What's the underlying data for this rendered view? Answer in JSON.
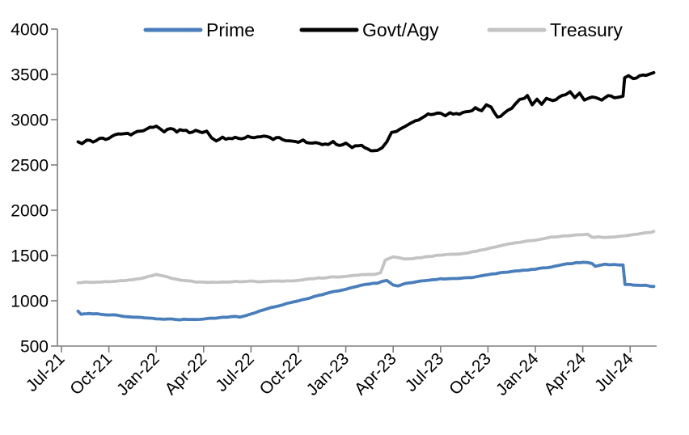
{
  "chart_data": {
    "type": "line",
    "title": "",
    "xlabel": "",
    "ylabel": "",
    "ylim": [
      500,
      4000
    ],
    "y_tick_step": 500,
    "y_tick_labels": [
      "4000",
      "3500",
      "3000",
      "2500",
      "2000",
      "1500",
      "1000",
      "500"
    ],
    "x_tick_labels": [
      "Jul-21",
      "Oct-21",
      "Jan-22",
      "Apr-22",
      "Jul-22",
      "Oct-22",
      "Jan-23",
      "Apr-23",
      "Jul-23",
      "Oct-23",
      "Jan-24",
      "Apr-24",
      "Jul-24"
    ],
    "x_unit": "months after Jul-2021 (fractional months, weekly-frequency data)",
    "grid": false,
    "legend_position": "top",
    "axis_color": "#7f7f7f",
    "background_color": "#ffffff",
    "legend": [
      {
        "label": "Prime",
        "color": "#4a7ebb"
      },
      {
        "label": "Govt/Agy",
        "color": "#000000"
      },
      {
        "label": "Treasury",
        "color": "#c3c3c3"
      }
    ],
    "series": [
      {
        "name": "Prime",
        "color": "#4a7ebb",
        "points": [
          [
            1.05,
            885
          ],
          [
            1.25,
            852
          ],
          [
            1.6,
            856
          ],
          [
            2,
            858
          ],
          [
            2.5,
            851
          ],
          [
            3,
            846
          ],
          [
            3.5,
            839
          ],
          [
            4,
            826
          ],
          [
            4.5,
            819
          ],
          [
            5,
            815
          ],
          [
            5.5,
            809
          ],
          [
            6,
            801
          ],
          [
            6.5,
            798
          ],
          [
            7,
            797
          ],
          [
            7.5,
            791
          ],
          [
            8,
            796
          ],
          [
            8.5,
            793
          ],
          [
            9,
            801
          ],
          [
            9.5,
            806
          ],
          [
            10,
            813
          ],
          [
            10.5,
            819
          ],
          [
            11,
            829
          ],
          [
            11.3,
            821
          ],
          [
            11.7,
            836
          ],
          [
            12,
            856
          ],
          [
            12.5,
            882
          ],
          [
            13,
            911
          ],
          [
            13.5,
            933
          ],
          [
            14,
            956
          ],
          [
            14.5,
            979
          ],
          [
            15,
            1001
          ],
          [
            15.5,
            1023
          ],
          [
            16,
            1046
          ],
          [
            16.5,
            1069
          ],
          [
            17,
            1091
          ],
          [
            17.5,
            1109
          ],
          [
            18,
            1126
          ],
          [
            18.5,
            1151
          ],
          [
            19,
            1171
          ],
          [
            19.5,
            1186
          ],
          [
            20,
            1196
          ],
          [
            20.3,
            1216
          ],
          [
            20.6,
            1221
          ],
          [
            21,
            1176
          ],
          [
            21.3,
            1166
          ],
          [
            21.7,
            1186
          ],
          [
            22,
            1196
          ],
          [
            22.5,
            1211
          ],
          [
            23,
            1223
          ],
          [
            23.5,
            1233
          ],
          [
            24,
            1241
          ],
          [
            24.5,
            1243
          ],
          [
            25,
            1246
          ],
          [
            25.5,
            1253
          ],
          [
            26,
            1259
          ],
          [
            26.5,
            1273
          ],
          [
            27,
            1286
          ],
          [
            27.5,
            1301
          ],
          [
            28,
            1314
          ],
          [
            28.5,
            1323
          ],
          [
            29,
            1331
          ],
          [
            29.5,
            1341
          ],
          [
            30,
            1349
          ],
          [
            30.5,
            1361
          ],
          [
            31,
            1373
          ],
          [
            31.5,
            1389
          ],
          [
            32,
            1406
          ],
          [
            32.3,
            1413
          ],
          [
            32.6,
            1420
          ],
          [
            33,
            1422
          ],
          [
            33.3,
            1425
          ],
          [
            33.6,
            1408
          ],
          [
            33.8,
            1378
          ],
          [
            34.1,
            1392
          ],
          [
            34.4,
            1403
          ],
          [
            34.7,
            1398
          ],
          [
            35,
            1403
          ],
          [
            35.3,
            1398
          ],
          [
            35.55,
            1400
          ],
          [
            35.68,
            1182
          ],
          [
            36,
            1178
          ],
          [
            36.5,
            1172
          ],
          [
            37,
            1168
          ],
          [
            37.3,
            1161
          ],
          [
            37.5,
            1158
          ]
        ]
      },
      {
        "name": "Govt/Agy",
        "color": "#000000",
        "points": [
          [
            1.05,
            2755
          ],
          [
            1.3,
            2740
          ],
          [
            1.6,
            2775
          ],
          [
            2,
            2760
          ],
          [
            2.4,
            2795
          ],
          [
            2.8,
            2780
          ],
          [
            3.2,
            2820
          ],
          [
            3.6,
            2840
          ],
          [
            4,
            2850
          ],
          [
            4.4,
            2830
          ],
          [
            4.8,
            2870
          ],
          [
            5.2,
            2885
          ],
          [
            5.6,
            2910
          ],
          [
            6,
            2935
          ],
          [
            6.2,
            2905
          ],
          [
            6.5,
            2875
          ],
          [
            6.9,
            2900
          ],
          [
            7.3,
            2870
          ],
          [
            7.7,
            2890
          ],
          [
            8.1,
            2860
          ],
          [
            8.5,
            2880
          ],
          [
            8.9,
            2850
          ],
          [
            9.2,
            2870
          ],
          [
            9.5,
            2800
          ],
          [
            9.8,
            2760
          ],
          [
            10.2,
            2800
          ],
          [
            10.6,
            2785
          ],
          [
            11,
            2810
          ],
          [
            11.4,
            2795
          ],
          [
            11.8,
            2815
          ],
          [
            12.2,
            2800
          ],
          [
            12.6,
            2815
          ],
          [
            13,
            2805
          ],
          [
            13.4,
            2790
          ],
          [
            13.8,
            2800
          ],
          [
            14.2,
            2775
          ],
          [
            14.6,
            2760
          ],
          [
            15,
            2745
          ],
          [
            15.3,
            2770
          ],
          [
            15.7,
            2735
          ],
          [
            16.1,
            2745
          ],
          [
            16.5,
            2715
          ],
          [
            16.9,
            2730
          ],
          [
            17.2,
            2750
          ],
          [
            17.6,
            2705
          ],
          [
            18,
            2735
          ],
          [
            18.4,
            2700
          ],
          [
            18.8,
            2720
          ],
          [
            19.2,
            2700
          ],
          [
            19.6,
            2665
          ],
          [
            20,
            2655
          ],
          [
            20.3,
            2690
          ],
          [
            20.6,
            2760
          ],
          [
            20.9,
            2850
          ],
          [
            21.2,
            2880
          ],
          [
            21.5,
            2905
          ],
          [
            21.8,
            2935
          ],
          [
            22.1,
            2955
          ],
          [
            22.4,
            2985
          ],
          [
            22.8,
            3020
          ],
          [
            23.2,
            3055
          ],
          [
            23.6,
            3070
          ],
          [
            24,
            3078
          ],
          [
            24.3,
            3050
          ],
          [
            24.6,
            3068
          ],
          [
            25,
            3058
          ],
          [
            25.4,
            3078
          ],
          [
            25.8,
            3088
          ],
          [
            26.2,
            3125
          ],
          [
            26.6,
            3105
          ],
          [
            26.9,
            3155
          ],
          [
            27.2,
            3130
          ],
          [
            27.6,
            3025
          ],
          [
            28,
            3060
          ],
          [
            28.5,
            3130
          ],
          [
            29,
            3225
          ],
          [
            29.3,
            3245
          ],
          [
            29.5,
            3268
          ],
          [
            29.8,
            3170
          ],
          [
            30.1,
            3230
          ],
          [
            30.4,
            3170
          ],
          [
            30.7,
            3230
          ],
          [
            31.1,
            3210
          ],
          [
            31.5,
            3240
          ],
          [
            31.9,
            3280
          ],
          [
            32.2,
            3310
          ],
          [
            32.5,
            3250
          ],
          [
            32.8,
            3295
          ],
          [
            33.1,
            3210
          ],
          [
            33.4,
            3230
          ],
          [
            33.8,
            3250
          ],
          [
            34.2,
            3225
          ],
          [
            34.6,
            3265
          ],
          [
            35,
            3250
          ],
          [
            35.3,
            3255
          ],
          [
            35.55,
            3268
          ],
          [
            35.65,
            3470
          ],
          [
            35.9,
            3478
          ],
          [
            36.2,
            3452
          ],
          [
            36.6,
            3485
          ],
          [
            37,
            3495
          ],
          [
            37.3,
            3512
          ],
          [
            37.5,
            3520
          ]
        ]
      },
      {
        "name": "Treasury",
        "color": "#c3c3c3",
        "points": [
          [
            1.05,
            1200
          ],
          [
            1.5,
            1205
          ],
          [
            2,
            1202
          ],
          [
            2.5,
            1208
          ],
          [
            3,
            1212
          ],
          [
            3.5,
            1218
          ],
          [
            4,
            1222
          ],
          [
            4.5,
            1232
          ],
          [
            5,
            1248
          ],
          [
            5.5,
            1268
          ],
          [
            6,
            1292
          ],
          [
            6.3,
            1278
          ],
          [
            6.7,
            1262
          ],
          [
            7,
            1248
          ],
          [
            7.5,
            1232
          ],
          [
            8,
            1218
          ],
          [
            8.5,
            1210
          ],
          [
            9,
            1206
          ],
          [
            9.5,
            1202
          ],
          [
            10,
            1206
          ],
          [
            10.5,
            1210
          ],
          [
            11,
            1213
          ],
          [
            11.5,
            1209
          ],
          [
            12,
            1215
          ],
          [
            12.5,
            1212
          ],
          [
            13,
            1211
          ],
          [
            13.5,
            1216
          ],
          [
            14,
            1219
          ],
          [
            14.5,
            1223
          ],
          [
            15,
            1226
          ],
          [
            15.5,
            1236
          ],
          [
            16,
            1246
          ],
          [
            16.5,
            1253
          ],
          [
            17,
            1259
          ],
          [
            17.5,
            1263
          ],
          [
            18,
            1269
          ],
          [
            18.5,
            1279
          ],
          [
            19,
            1287
          ],
          [
            19.5,
            1291
          ],
          [
            19.9,
            1295
          ],
          [
            20.2,
            1310
          ],
          [
            20.5,
            1452
          ],
          [
            20.8,
            1475
          ],
          [
            21,
            1482
          ],
          [
            21.3,
            1474
          ],
          [
            21.7,
            1464
          ],
          [
            22,
            1462
          ],
          [
            22.5,
            1471
          ],
          [
            23,
            1481
          ],
          [
            23.5,
            1493
          ],
          [
            24,
            1506
          ],
          [
            24.5,
            1511
          ],
          [
            25,
            1513
          ],
          [
            25.5,
            1526
          ],
          [
            26,
            1539
          ],
          [
            26.5,
            1556
          ],
          [
            27,
            1573
          ],
          [
            27.5,
            1596
          ],
          [
            28,
            1619
          ],
          [
            28.5,
            1633
          ],
          [
            29,
            1646
          ],
          [
            29.5,
            1659
          ],
          [
            30,
            1671
          ],
          [
            30.5,
            1689
          ],
          [
            31,
            1703
          ],
          [
            31.5,
            1711
          ],
          [
            32,
            1716
          ],
          [
            32.5,
            1726
          ],
          [
            33,
            1732
          ],
          [
            33.3,
            1738
          ],
          [
            33.6,
            1700
          ],
          [
            34,
            1705
          ],
          [
            34.5,
            1698
          ],
          [
            35,
            1702
          ],
          [
            35.5,
            1712
          ],
          [
            36,
            1722
          ],
          [
            36.5,
            1736
          ],
          [
            37,
            1750
          ],
          [
            37.3,
            1758
          ],
          [
            37.5,
            1766
          ]
        ]
      }
    ]
  }
}
